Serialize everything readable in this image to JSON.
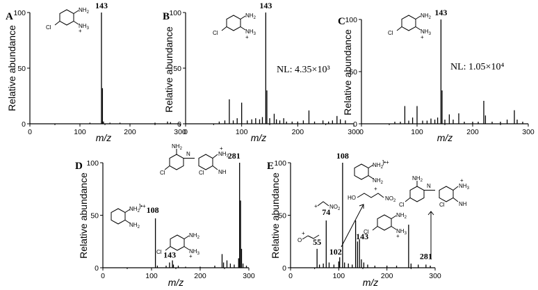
{
  "chart_data": [
    {
      "panel": "A",
      "type": "bar",
      "xlabel": "m/z",
      "ylabel": "Relative abundance",
      "xlim": [
        0,
        300
      ],
      "ylim": [
        0,
        100
      ],
      "xticks": [
        0,
        100,
        200,
        300
      ],
      "yticks": [
        0,
        50,
        100
      ],
      "peak_labels": [
        "143"
      ],
      "annotations": [],
      "structures": [
        "4-chloro-o-phenylenediamine (NH2 / NH3+, Cl)"
      ],
      "peaks": [
        {
          "x": 143,
          "y": 100
        },
        {
          "x": 145,
          "y": 32
        },
        {
          "x": 147,
          "y": 2
        },
        {
          "x": 120,
          "y": 1
        },
        {
          "x": 160,
          "y": 1
        },
        {
          "x": 180,
          "y": 1
        },
        {
          "x": 250,
          "y": 1
        },
        {
          "x": 275,
          "y": 2
        },
        {
          "x": 281,
          "y": 1.5
        }
      ]
    },
    {
      "panel": "B",
      "type": "bar",
      "xlabel": "m/z",
      "ylabel": "Relative abundance",
      "xlim": [
        0,
        300
      ],
      "ylim": [
        0,
        100
      ],
      "xticks": [
        0,
        100,
        200,
        300
      ],
      "yticks": [
        0,
        50,
        100
      ],
      "peak_labels": [
        "143"
      ],
      "annotations": [
        "NL: 4.35×10³"
      ],
      "structures": [
        "4-chloro-o-phenylenediamine (NH2 / NH3+, Cl)"
      ],
      "peaks": [
        {
          "x": 60,
          "y": 2
        },
        {
          "x": 70,
          "y": 3
        },
        {
          "x": 78,
          "y": 22
        },
        {
          "x": 85,
          "y": 3
        },
        {
          "x": 92,
          "y": 5
        },
        {
          "x": 100,
          "y": 19
        },
        {
          "x": 110,
          "y": 3
        },
        {
          "x": 118,
          "y": 4
        },
        {
          "x": 125,
          "y": 5
        },
        {
          "x": 132,
          "y": 4
        },
        {
          "x": 137,
          "y": 6
        },
        {
          "x": 143,
          "y": 100
        },
        {
          "x": 145,
          "y": 30
        },
        {
          "x": 150,
          "y": 5
        },
        {
          "x": 158,
          "y": 9
        },
        {
          "x": 162,
          "y": 4
        },
        {
          "x": 168,
          "y": 3
        },
        {
          "x": 175,
          "y": 5
        },
        {
          "x": 180,
          "y": 2
        },
        {
          "x": 190,
          "y": 2
        },
        {
          "x": 200,
          "y": 2
        },
        {
          "x": 210,
          "y": 3
        },
        {
          "x": 220,
          "y": 12
        },
        {
          "x": 230,
          "y": 2
        },
        {
          "x": 245,
          "y": 3
        },
        {
          "x": 255,
          "y": 2
        },
        {
          "x": 262,
          "y": 3
        },
        {
          "x": 270,
          "y": 7
        },
        {
          "x": 276,
          "y": 4
        },
        {
          "x": 285,
          "y": 3
        }
      ]
    },
    {
      "panel": "C",
      "type": "bar",
      "xlabel": "m/z",
      "ylabel": "Relative abundance",
      "xlim": [
        0,
        300
      ],
      "ylim": [
        0,
        100
      ],
      "xticks": [
        0,
        100,
        200,
        300
      ],
      "yticks": [
        0,
        50,
        100
      ],
      "peak_labels": [
        "143"
      ],
      "annotations": [
        "NL: 1.05×10⁴"
      ],
      "structures": [
        "4-chloro-o-phenylenediamine (NH2 / NH3+, Cl)"
      ],
      "peaks": [
        {
          "x": 60,
          "y": 2
        },
        {
          "x": 70,
          "y": 2
        },
        {
          "x": 78,
          "y": 17
        },
        {
          "x": 85,
          "y": 3
        },
        {
          "x": 92,
          "y": 6
        },
        {
          "x": 100,
          "y": 17
        },
        {
          "x": 110,
          "y": 3
        },
        {
          "x": 118,
          "y": 3
        },
        {
          "x": 125,
          "y": 5
        },
        {
          "x": 132,
          "y": 4
        },
        {
          "x": 137,
          "y": 6
        },
        {
          "x": 143,
          "y": 100
        },
        {
          "x": 145,
          "y": 32
        },
        {
          "x": 150,
          "y": 4
        },
        {
          "x": 158,
          "y": 9
        },
        {
          "x": 165,
          "y": 4
        },
        {
          "x": 175,
          "y": 10
        },
        {
          "x": 185,
          "y": 2
        },
        {
          "x": 200,
          "y": 2
        },
        {
          "x": 210,
          "y": 2
        },
        {
          "x": 220,
          "y": 22
        },
        {
          "x": 223,
          "y": 8
        },
        {
          "x": 235,
          "y": 2
        },
        {
          "x": 250,
          "y": 2
        },
        {
          "x": 262,
          "y": 4
        },
        {
          "x": 275,
          "y": 13
        },
        {
          "x": 280,
          "y": 4
        },
        {
          "x": 290,
          "y": 2
        }
      ]
    },
    {
      "panel": "D",
      "type": "bar",
      "xlabel": "m/z",
      "ylabel": "Relative abundance",
      "xlim": [
        0,
        300
      ],
      "ylim": [
        0,
        100
      ],
      "xticks": [
        0,
        100,
        200,
        300
      ],
      "yticks": [
        0,
        50,
        100
      ],
      "peak_labels": [
        "281",
        "108",
        "143"
      ],
      "annotations": [],
      "structures": [
        "o-phenylenediamine radical cation (NH2 •+)",
        "4-chloro-o-phenylenediamine",
        "phenazine-type dimer (NH3+, NH, Cl)"
      ],
      "peaks": [
        {
          "x": 108,
          "y": 47
        },
        {
          "x": 112,
          "y": 2
        },
        {
          "x": 130,
          "y": 2
        },
        {
          "x": 137,
          "y": 5
        },
        {
          "x": 143,
          "y": 7
        },
        {
          "x": 145,
          "y": 3
        },
        {
          "x": 155,
          "y": 2
        },
        {
          "x": 170,
          "y": 1
        },
        {
          "x": 200,
          "y": 1
        },
        {
          "x": 230,
          "y": 2
        },
        {
          "x": 245,
          "y": 13
        },
        {
          "x": 248,
          "y": 5
        },
        {
          "x": 255,
          "y": 7
        },
        {
          "x": 262,
          "y": 4
        },
        {
          "x": 270,
          "y": 3
        },
        {
          "x": 279,
          "y": 9
        },
        {
          "x": 281,
          "y": 100
        },
        {
          "x": 283,
          "y": 64
        },
        {
          "x": 285,
          "y": 18
        },
        {
          "x": 288,
          "y": 4
        },
        {
          "x": 295,
          "y": 2
        }
      ]
    },
    {
      "panel": "E",
      "type": "bar",
      "xlabel": "m/z",
      "ylabel": "Relative abundance",
      "xlim": [
        0,
        300
      ],
      "ylim": [
        0,
        100
      ],
      "xticks": [
        0,
        100,
        200,
        300
      ],
      "yticks": [
        0,
        50,
        100
      ],
      "peak_labels": [
        "108",
        "74",
        "55",
        "102",
        "143",
        "281"
      ],
      "annotations": [],
      "structures": [
        "o-phenylenediamine radical cation (NH2 •+)",
        "O=C+ acylium fragment",
        "NO2 cation fragment",
        "HO nitro-alkene cation",
        "4-chloro-o-phenylenediamine",
        "phenazine-type dimer"
      ],
      "peaks": [
        {
          "x": 55,
          "y": 18
        },
        {
          "x": 60,
          "y": 3
        },
        {
          "x": 68,
          "y": 4
        },
        {
          "x": 74,
          "y": 45
        },
        {
          "x": 80,
          "y": 5
        },
        {
          "x": 90,
          "y": 3
        },
        {
          "x": 100,
          "y": 6
        },
        {
          "x": 102,
          "y": 10
        },
        {
          "x": 108,
          "y": 100
        },
        {
          "x": 112,
          "y": 5
        },
        {
          "x": 120,
          "y": 4
        },
        {
          "x": 128,
          "y": 3
        },
        {
          "x": 135,
          "y": 45
        },
        {
          "x": 139,
          "y": 25
        },
        {
          "x": 143,
          "y": 27
        },
        {
          "x": 147,
          "y": 8
        },
        {
          "x": 152,
          "y": 5
        },
        {
          "x": 160,
          "y": 3
        },
        {
          "x": 175,
          "y": 2
        },
        {
          "x": 200,
          "y": 2
        },
        {
          "x": 220,
          "y": 2
        },
        {
          "x": 245,
          "y": 41
        },
        {
          "x": 250,
          "y": 4
        },
        {
          "x": 265,
          "y": 3
        },
        {
          "x": 281,
          "y": 3
        },
        {
          "x": 290,
          "y": 2
        }
      ]
    }
  ]
}
